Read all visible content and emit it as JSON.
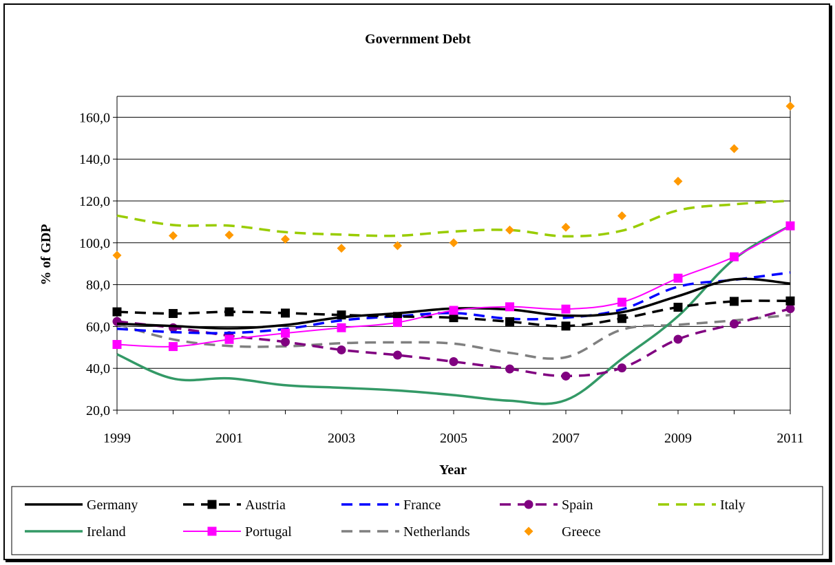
{
  "chart_data": {
    "type": "line",
    "title": "Government Debt",
    "xlabel": "Year",
    "ylabel": "% of GDP",
    "x": [
      1999,
      2000,
      2001,
      2002,
      2003,
      2004,
      2005,
      2006,
      2007,
      2008,
      2009,
      2010,
      2011
    ],
    "x_tick_labels": [
      "1999",
      "2001",
      "2003",
      "2005",
      "2007",
      "2009",
      "2011"
    ],
    "y_tick_labels": [
      "20,0",
      "40,0",
      "60,0",
      "80,0",
      "100,0",
      "120,0",
      "140,0",
      "160,0"
    ],
    "ylim": [
      20,
      170
    ],
    "grid": "horizontal",
    "legend_position": "bottom",
    "series": [
      {
        "name": "Germany",
        "color": "#000000",
        "dash": "solid",
        "marker": "none",
        "values": [
          61.3,
          60.2,
          59.1,
          60.7,
          64.4,
          66.3,
          68.6,
          68.1,
          65.2,
          66.8,
          74.5,
          82.5,
          80.5
        ]
      },
      {
        "name": "Austria",
        "color": "#000000",
        "dash": "dashed",
        "marker": "square",
        "values": [
          67.0,
          66.2,
          67.0,
          66.4,
          65.5,
          64.8,
          64.2,
          62.3,
          60.2,
          63.8,
          69.2,
          72.0,
          72.2
        ]
      },
      {
        "name": "France",
        "color": "#0000FF",
        "dash": "dashed",
        "marker": "none",
        "values": [
          58.9,
          57.3,
          56.9,
          58.8,
          62.9,
          64.9,
          66.4,
          63.7,
          64.2,
          68.2,
          79.0,
          82.3,
          85.8
        ]
      },
      {
        "name": "Spain",
        "color": "#800080",
        "dash": "dashed",
        "marker": "circle",
        "values": [
          62.4,
          59.4,
          55.6,
          52.6,
          48.8,
          46.3,
          43.2,
          39.7,
          36.3,
          40.2,
          53.9,
          61.2,
          68.5
        ]
      },
      {
        "name": "Italy",
        "color": "#99CC00",
        "dash": "dashed",
        "marker": "none",
        "values": [
          113.0,
          108.5,
          108.2,
          105.1,
          103.9,
          103.4,
          105.4,
          106.1,
          103.1,
          105.8,
          115.5,
          118.4,
          120.1
        ]
      },
      {
        "name": "Ireland",
        "color": "#339966",
        "dash": "solid",
        "marker": "none",
        "values": [
          46.7,
          35.1,
          35.2,
          31.9,
          30.7,
          29.4,
          27.2,
          24.5,
          24.8,
          44.5,
          64.9,
          92.2,
          108.2
        ]
      },
      {
        "name": "Portugal",
        "color": "#FF00FF",
        "dash": "solid",
        "marker": "square",
        "values": [
          51.4,
          50.4,
          53.8,
          56.8,
          59.4,
          61.9,
          67.7,
          69.4,
          68.3,
          71.6,
          83.1,
          93.3,
          108.1
        ]
      },
      {
        "name": "Netherlands",
        "color": "#808080",
        "dash": "dashed",
        "marker": "none",
        "values": [
          61.1,
          53.8,
          50.7,
          50.5,
          52.0,
          52.4,
          51.8,
          47.4,
          45.3,
          58.5,
          60.8,
          62.9,
          65.5
        ]
      },
      {
        "name": "Greece",
        "color": "#FF9900",
        "dash": "none",
        "marker": "diamond",
        "values": [
          94.0,
          103.4,
          103.7,
          101.7,
          97.4,
          98.6,
          100.0,
          106.1,
          107.4,
          112.9,
          129.4,
          145.0,
          165.3
        ]
      }
    ]
  }
}
